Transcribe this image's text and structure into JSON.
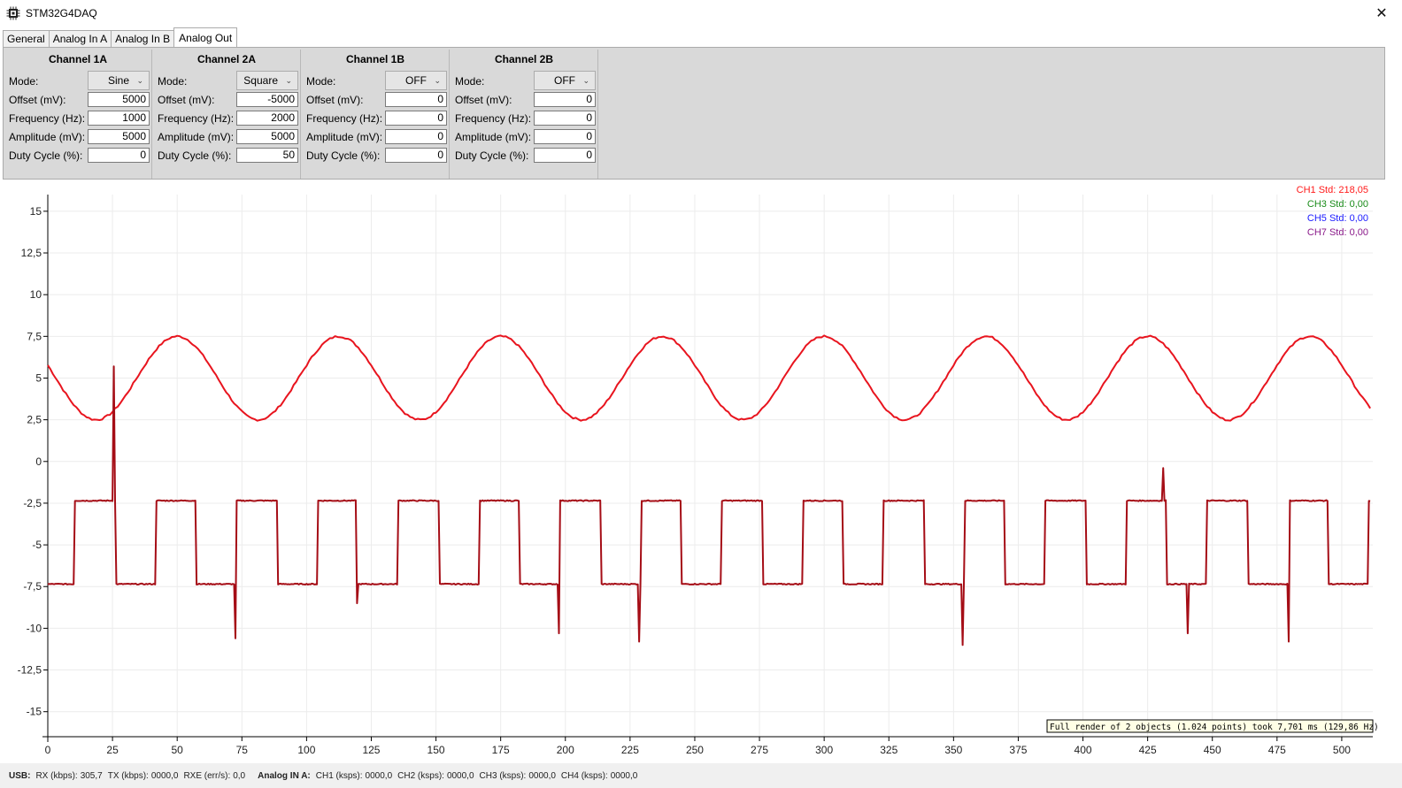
{
  "window": {
    "title": "STM32G4DAQ",
    "close_glyph": "✕"
  },
  "tabs": [
    {
      "label": "General",
      "active": false
    },
    {
      "label": "Analog In A",
      "active": false
    },
    {
      "label": "Analog In B",
      "active": false
    },
    {
      "label": "Analog Out",
      "active": true
    }
  ],
  "labels": {
    "mode": "Mode:",
    "offset": "Offset (mV):",
    "frequency": "Frequency (Hz):",
    "amplitude": "Amplitude (mV):",
    "duty": "Duty Cycle (%):"
  },
  "channels": [
    {
      "title": "Channel 1A",
      "mode": "Sine",
      "offset": "5000",
      "frequency": "1000",
      "amplitude": "5000",
      "duty": "0"
    },
    {
      "title": "Channel 2A",
      "mode": "Square",
      "offset": "-5000",
      "frequency": "2000",
      "amplitude": "5000",
      "duty": "50"
    },
    {
      "title": "Channel 1B",
      "mode": "OFF",
      "offset": "0",
      "frequency": "0",
      "amplitude": "0",
      "duty": "0"
    },
    {
      "title": "Channel 2B",
      "mode": "OFF",
      "offset": "0",
      "frequency": "0",
      "amplitude": "0",
      "duty": "0"
    }
  ],
  "status": {
    "usb_label": "USB:",
    "rx_label": "RX (kbps):",
    "rx_value": "305,7",
    "tx_label": "TX (kbps):",
    "tx_value": "0000,0",
    "rxe_label": "RXE (err/s):",
    "rxe_value": "0,0",
    "analog_label": "Analog IN A:",
    "ch1_label": "CH1 (ksps):",
    "ch1_value": "0000,0",
    "ch2_label": "CH2 (ksps):",
    "ch2_value": "0000,0",
    "ch3_label": "CH3 (ksps):",
    "ch3_value": "0000,0",
    "ch4_label": "CH4 (ksps):",
    "ch4_value": "0000,0"
  },
  "chart_data": {
    "type": "line",
    "xlim": [
      0,
      512
    ],
    "ylim": [
      -16.5,
      16
    ],
    "x_ticks": [
      0,
      25,
      50,
      75,
      100,
      125,
      150,
      175,
      200,
      225,
      250,
      275,
      300,
      325,
      350,
      375,
      400,
      425,
      450,
      475,
      500
    ],
    "y_ticks": [
      15,
      12.5,
      10,
      7.5,
      5,
      2.5,
      0,
      -2.5,
      -5,
      -7.5,
      -10,
      -12.5,
      -15
    ],
    "y_tick_labels": [
      "15",
      "12,5",
      "10",
      "7,5",
      "5",
      "2,5",
      "0",
      "-2,5",
      "-5",
      "-7,5",
      "-10",
      "-12,5",
      "-15"
    ],
    "grid": true,
    "legend_position": "top-right",
    "stats": [
      {
        "text": "CH1 Std: 218,05",
        "color": "#ff1a1a"
      },
      {
        "text": "CH3 Std: 0,00",
        "color": "#1a8c1a"
      },
      {
        "text": "CH5 Std: 0,00",
        "color": "#1a1aff"
      },
      {
        "text": "CH7 Std: 0,00",
        "color": "#8a1a8a"
      }
    ],
    "render_info": "Full render of 2 objects (1.024 points) took 7,701 ms (129,86 Hz)",
    "series": [
      {
        "color": "#e8141e",
        "kind": "sine",
        "mean": 5.0,
        "amplitude": 2.5,
        "period": 62.5,
        "peak_x": 50,
        "start_x": 0,
        "end_x": 511
      },
      {
        "color": "#a50d16",
        "kind": "square",
        "high": -2.35,
        "low": -7.35,
        "period": 31.25,
        "high_start_x": 10.5,
        "high_width": 15.6,
        "start_x": 0,
        "end_x": 511,
        "spikes": [
          {
            "x": 25.5,
            "y": 5.7
          },
          {
            "x": 72.5,
            "y": -10.6
          },
          {
            "x": 119.5,
            "y": -8.5
          },
          {
            "x": 197.5,
            "y": -10.3
          },
          {
            "x": 228.5,
            "y": -10.8
          },
          {
            "x": 353.5,
            "y": -11.0
          },
          {
            "x": 431,
            "y": -0.4
          },
          {
            "x": 440.5,
            "y": -10.3
          },
          {
            "x": 479.5,
            "y": -10.8
          }
        ]
      }
    ]
  }
}
